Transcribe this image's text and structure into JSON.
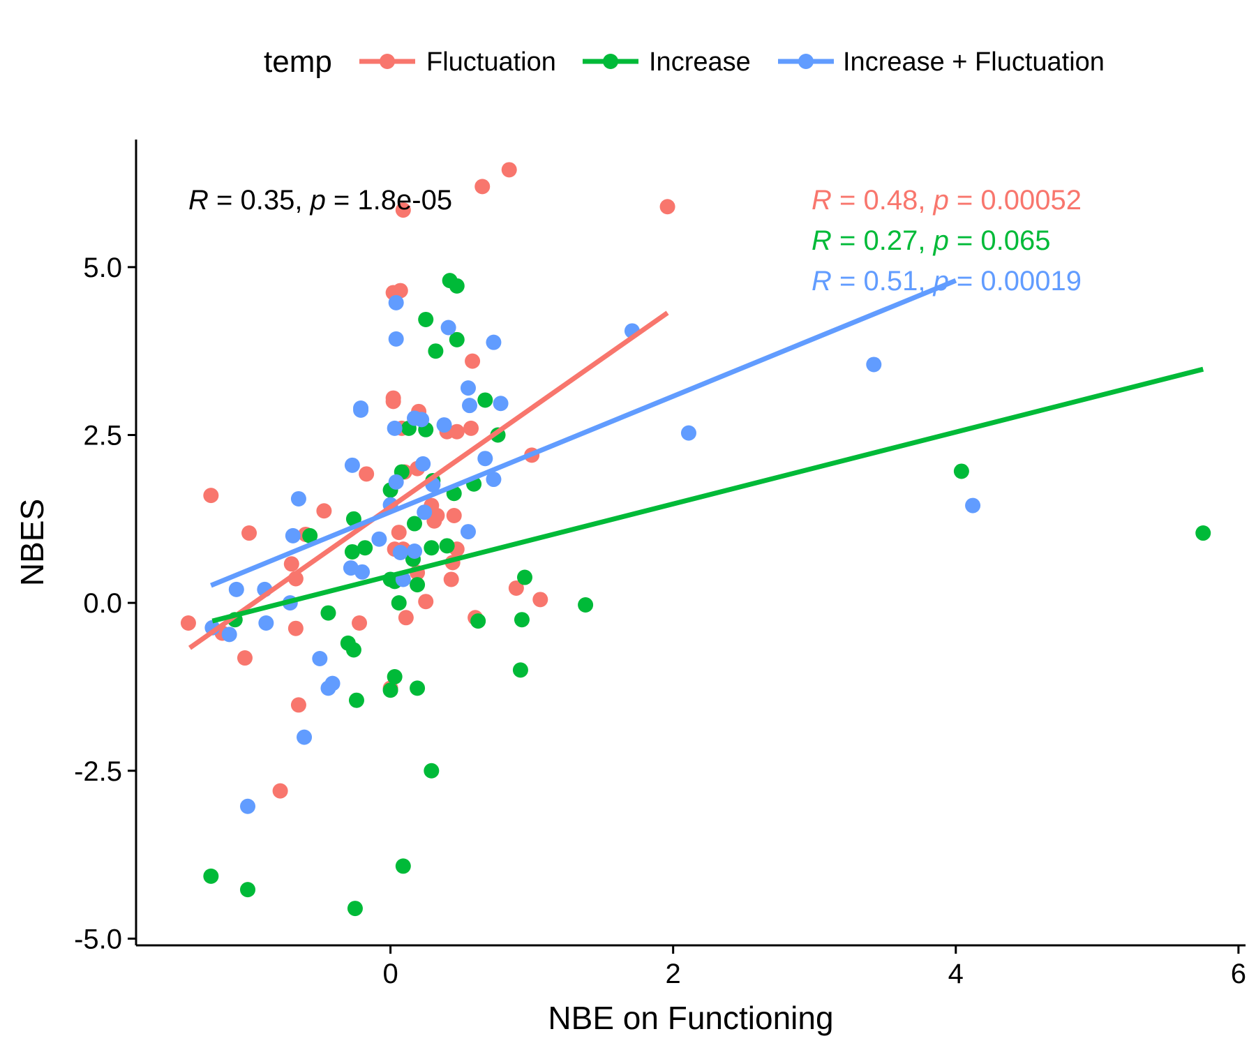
{
  "chart_data": {
    "type": "scatter",
    "xlabel": "NBE on Functioning",
    "ylabel": "NBES",
    "xlim": [
      -1.8,
      6.05
    ],
    "ylim": [
      -5.1,
      6.9
    ],
    "x_ticks": [
      0,
      2,
      4,
      6
    ],
    "x_tick_labels": [
      "0",
      "2",
      "4",
      "6"
    ],
    "y_ticks": [
      5.0,
      2.5,
      0.0,
      -2.5,
      -5.0
    ],
    "y_tick_labels": [
      "5.0",
      "2.5",
      "0.0",
      "-2.5",
      "-5.0"
    ],
    "grid": false,
    "legend": {
      "title": "temp",
      "position": "top",
      "entries": [
        "Fluctuation",
        "Increase",
        "Increase + Fluctuation"
      ]
    },
    "overall_stat": "R = 0.35, p = 1.8e-05",
    "series": [
      {
        "name": "Fluctuation",
        "color": "#F8766D",
        "stat": "R = 0.48, p = 0.00052",
        "fit": {
          "x": [
            -1.42,
            1.96
          ],
          "y": [
            -0.67,
            4.32
          ]
        },
        "points": [
          [
            0.84,
            6.45
          ],
          [
            0.65,
            6.2
          ],
          [
            0.09,
            5.85
          ],
          [
            1.96,
            5.9
          ],
          [
            0.07,
            4.65
          ],
          [
            0.02,
            4.62
          ],
          [
            0.58,
            3.6
          ],
          [
            0.02,
            3.05
          ],
          [
            0.02,
            3.0
          ],
          [
            0.2,
            2.85
          ],
          [
            0.08,
            2.6
          ],
          [
            0.57,
            2.6
          ],
          [
            0.4,
            2.55
          ],
          [
            0.47,
            2.55
          ],
          [
            1.0,
            2.2
          ],
          [
            0.19,
            2.0
          ],
          [
            0.1,
            1.95
          ],
          [
            -0.17,
            1.92
          ],
          [
            0.29,
            1.45
          ],
          [
            0.45,
            1.3
          ],
          [
            0.33,
            1.3
          ],
          [
            0.31,
            1.22
          ],
          [
            -0.47,
            1.37
          ],
          [
            -1.27,
            1.6
          ],
          [
            -0.6,
            1.02
          ],
          [
            -1.0,
            1.04
          ],
          [
            0.06,
            1.05
          ],
          [
            0.03,
            0.8
          ],
          [
            0.09,
            0.8
          ],
          [
            0.47,
            0.8
          ],
          [
            0.44,
            0.6
          ],
          [
            -0.7,
            0.58
          ],
          [
            0.19,
            0.45
          ],
          [
            -0.67,
            0.36
          ],
          [
            0.43,
            0.35
          ],
          [
            0.89,
            0.22
          ],
          [
            1.06,
            0.05
          ],
          [
            0.25,
            0.02
          ],
          [
            -1.43,
            -0.3
          ],
          [
            -1.19,
            -0.45
          ],
          [
            -0.22,
            -0.3
          ],
          [
            0.11,
            -0.22
          ],
          [
            0.6,
            -0.22
          ],
          [
            -0.67,
            -0.38
          ],
          [
            -1.03,
            -0.82
          ],
          [
            -0.65,
            -1.52
          ],
          [
            0.0,
            -1.27
          ],
          [
            -0.78,
            -2.8
          ]
        ]
      },
      {
        "name": "Increase",
        "color": "#00BA38",
        "stat": "R = 0.27, p = 0.065",
        "fit": {
          "x": [
            -1.26,
            5.75
          ],
          "y": [
            -0.27,
            3.48
          ]
        },
        "points": [
          [
            0.42,
            4.8
          ],
          [
            0.47,
            4.72
          ],
          [
            0.25,
            4.22
          ],
          [
            0.47,
            3.92
          ],
          [
            0.32,
            3.75
          ],
          [
            0.67,
            3.02
          ],
          [
            0.13,
            2.6
          ],
          [
            0.25,
            2.58
          ],
          [
            0.76,
            2.5
          ],
          [
            0.08,
            1.95
          ],
          [
            0.3,
            1.82
          ],
          [
            0.59,
            1.77
          ],
          [
            0.0,
            1.68
          ],
          [
            0.45,
            1.63
          ],
          [
            -0.26,
            1.25
          ],
          [
            0.17,
            1.18
          ],
          [
            -0.57,
            1.0
          ],
          [
            -0.18,
            0.82
          ],
          [
            0.29,
            0.82
          ],
          [
            0.4,
            0.85
          ],
          [
            -0.27,
            0.76
          ],
          [
            0.16,
            0.65
          ],
          [
            0.0,
            0.35
          ],
          [
            0.03,
            0.32
          ],
          [
            0.19,
            0.27
          ],
          [
            0.95,
            0.38
          ],
          [
            1.38,
            -0.03
          ],
          [
            0.06,
            0.0
          ],
          [
            -1.1,
            -0.25
          ],
          [
            -0.44,
            -0.15
          ],
          [
            0.62,
            -0.27
          ],
          [
            0.93,
            -0.25
          ],
          [
            -0.3,
            -0.6
          ],
          [
            -0.26,
            -0.7
          ],
          [
            0.92,
            -1.0
          ],
          [
            0.03,
            -1.1
          ],
          [
            0.0,
            -1.3
          ],
          [
            0.19,
            -1.27
          ],
          [
            -0.24,
            -1.45
          ],
          [
            0.29,
            -2.5
          ],
          [
            -1.27,
            -4.07
          ],
          [
            -1.01,
            -4.27
          ],
          [
            0.09,
            -3.92
          ],
          [
            -0.25,
            -4.55
          ],
          [
            4.04,
            1.96
          ],
          [
            5.75,
            1.04
          ]
        ]
      },
      {
        "name": "Increase + Fluctuation",
        "color": "#619CFF",
        "stat": "R = 0.51, p = 0.00019",
        "fit": {
          "x": [
            -1.27,
            4.0
          ],
          "y": [
            0.26,
            4.8
          ]
        },
        "points": [
          [
            0.04,
            4.47
          ],
          [
            1.71,
            4.05
          ],
          [
            0.41,
            4.1
          ],
          [
            0.04,
            3.93
          ],
          [
            0.73,
            3.88
          ],
          [
            3.42,
            3.55
          ],
          [
            0.55,
            3.2
          ],
          [
            0.78,
            2.97
          ],
          [
            0.56,
            2.94
          ],
          [
            -0.21,
            2.9
          ],
          [
            -0.21,
            2.87
          ],
          [
            0.17,
            2.75
          ],
          [
            0.22,
            2.73
          ],
          [
            0.03,
            2.6
          ],
          [
            0.38,
            2.65
          ],
          [
            2.11,
            2.53
          ],
          [
            0.67,
            2.15
          ],
          [
            0.23,
            2.07
          ],
          [
            -0.27,
            2.05
          ],
          [
            0.73,
            1.84
          ],
          [
            0.04,
            1.8
          ],
          [
            0.3,
            1.76
          ],
          [
            0.0,
            1.46
          ],
          [
            0.24,
            1.35
          ],
          [
            -0.65,
            1.55
          ],
          [
            4.12,
            1.45
          ],
          [
            0.55,
            1.06
          ],
          [
            -0.69,
            1.0
          ],
          [
            -0.08,
            0.95
          ],
          [
            0.17,
            0.77
          ],
          [
            0.07,
            0.75
          ],
          [
            -0.28,
            0.52
          ],
          [
            -0.2,
            0.46
          ],
          [
            0.09,
            0.35
          ],
          [
            -0.89,
            0.2
          ],
          [
            -1.09,
            0.2
          ],
          [
            -0.71,
            0.0
          ],
          [
            -0.88,
            -0.3
          ],
          [
            -1.26,
            -0.37
          ],
          [
            -1.14,
            -0.47
          ],
          [
            -0.5,
            -0.83
          ],
          [
            -0.41,
            -1.2
          ],
          [
            -0.44,
            -1.27
          ],
          [
            -0.61,
            -2.0
          ],
          [
            -1.01,
            -3.03
          ]
        ]
      }
    ]
  }
}
